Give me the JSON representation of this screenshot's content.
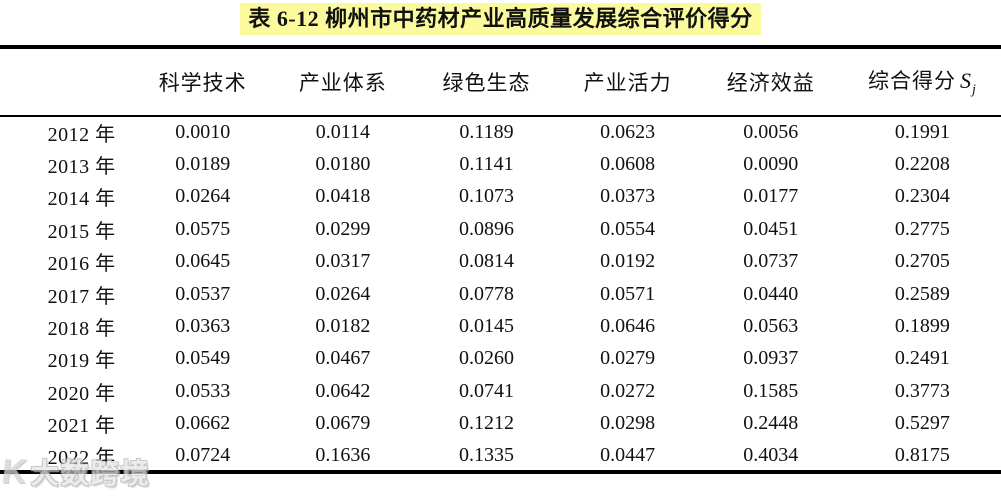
{
  "title": "表 6-12 柳州市中药材产业高质量发展综合评价得分",
  "highlight_color": "#fbfb9d",
  "table": {
    "year_header": "",
    "columns": [
      "科学技术",
      "产业体系",
      "绿色生态",
      "产业活力",
      "经济效益"
    ],
    "composite_column": {
      "label": "综合得分",
      "symbol": "S",
      "subscript": "j"
    },
    "rows": [
      {
        "year": "2012 年",
        "values": [
          "0.0010",
          "0.0114",
          "0.1189",
          "0.0623",
          "0.0056",
          "0.1991"
        ]
      },
      {
        "year": "2013 年",
        "values": [
          "0.0189",
          "0.0180",
          "0.1141",
          "0.0608",
          "0.0090",
          "0.2208"
        ]
      },
      {
        "year": "2014 年",
        "values": [
          "0.0264",
          "0.0418",
          "0.1073",
          "0.0373",
          "0.0177",
          "0.2304"
        ]
      },
      {
        "year": "2015 年",
        "values": [
          "0.0575",
          "0.0299",
          "0.0896",
          "0.0554",
          "0.0451",
          "0.2775"
        ]
      },
      {
        "year": "2016 年",
        "values": [
          "0.0645",
          "0.0317",
          "0.0814",
          "0.0192",
          "0.0737",
          "0.2705"
        ]
      },
      {
        "year": "2017 年",
        "values": [
          "0.0537",
          "0.0264",
          "0.0778",
          "0.0571",
          "0.0440",
          "0.2589"
        ]
      },
      {
        "year": "2018 年",
        "values": [
          "0.0363",
          "0.0182",
          "0.0145",
          "0.0646",
          "0.0563",
          "0.1899"
        ]
      },
      {
        "year": "2019 年",
        "values": [
          "0.0549",
          "0.0467",
          "0.0260",
          "0.0279",
          "0.0937",
          "0.2491"
        ]
      },
      {
        "year": "2020 年",
        "values": [
          "0.0533",
          "0.0642",
          "0.0741",
          "0.0272",
          "0.1585",
          "0.3773"
        ]
      },
      {
        "year": "2021 年",
        "values": [
          "0.0662",
          "0.0679",
          "0.1212",
          "0.0298",
          "0.2448",
          "0.5297"
        ]
      },
      {
        "year": "2022 年",
        "values": [
          "0.0724",
          "0.1636",
          "0.1335",
          "0.0447",
          "0.4034",
          "0.8175"
        ]
      }
    ]
  },
  "chart_data": {
    "type": "table",
    "title": "表 6-12 柳州市中药材产业高质量发展综合评价得分",
    "categories": [
      "2012",
      "2013",
      "2014",
      "2015",
      "2016",
      "2017",
      "2018",
      "2019",
      "2020",
      "2021",
      "2022"
    ],
    "series": [
      {
        "name": "科学技术",
        "values": [
          0.001,
          0.0189,
          0.0264,
          0.0575,
          0.0645,
          0.0537,
          0.0363,
          0.0549,
          0.0533,
          0.0662,
          0.0724
        ]
      },
      {
        "name": "产业体系",
        "values": [
          0.0114,
          0.018,
          0.0418,
          0.0299,
          0.0317,
          0.0264,
          0.0182,
          0.0467,
          0.0642,
          0.0679,
          0.1636
        ]
      },
      {
        "name": "绿色生态",
        "values": [
          0.1189,
          0.1141,
          0.1073,
          0.0896,
          0.0814,
          0.0778,
          0.0145,
          0.026,
          0.0741,
          0.1212,
          0.1335
        ]
      },
      {
        "name": "产业活力",
        "values": [
          0.0623,
          0.0608,
          0.0373,
          0.0554,
          0.0192,
          0.0571,
          0.0646,
          0.0279,
          0.0272,
          0.0298,
          0.0447
        ]
      },
      {
        "name": "经济效益",
        "values": [
          0.0056,
          0.009,
          0.0177,
          0.0451,
          0.0737,
          0.044,
          0.0563,
          0.0937,
          0.1585,
          0.2448,
          0.4034
        ]
      },
      {
        "name": "综合得分 Sj",
        "values": [
          0.1991,
          0.2208,
          0.2304,
          0.2775,
          0.2705,
          0.2589,
          0.1899,
          0.2491,
          0.3773,
          0.5297,
          0.8175
        ]
      }
    ]
  },
  "watermark": {
    "logo": "K",
    "text": "大数跨境"
  }
}
